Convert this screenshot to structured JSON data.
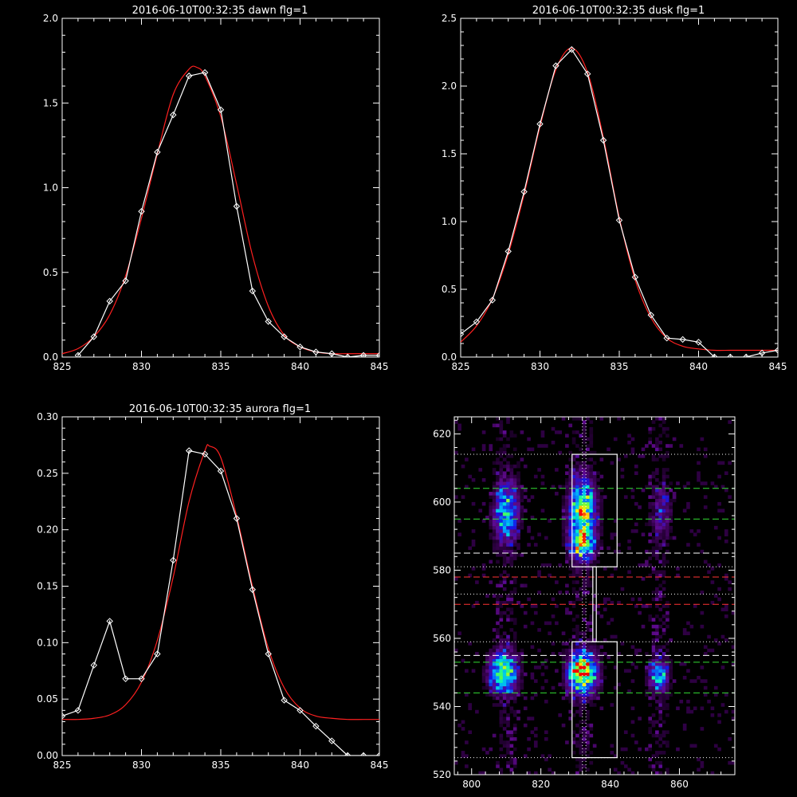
{
  "chart_data": [
    {
      "type": "line",
      "title": "2016-06-10T00:32:35 dawn flg=1",
      "xlim": [
        825,
        845
      ],
      "ylim": [
        0,
        2.0
      ],
      "xticks": [
        825,
        830,
        835,
        840,
        845
      ],
      "yticks": [
        0.0,
        0.5,
        1.0,
        1.5,
        2.0
      ],
      "ytick_labels": [
        "0.0",
        "0.5",
        "1.0",
        "1.5",
        "2.0"
      ],
      "series": [
        {
          "role": "observed",
          "color": "#ffffff",
          "marker": "diamond",
          "x": [
            826,
            827,
            828,
            829,
            830,
            831,
            832,
            833,
            834,
            835,
            836,
            837,
            838,
            839,
            840,
            841,
            842,
            843,
            844,
            845
          ],
          "y": [
            0.01,
            0.12,
            0.33,
            0.45,
            0.86,
            1.21,
            1.43,
            1.66,
            1.68,
            1.46,
            0.89,
            0.39,
            0.21,
            0.12,
            0.06,
            0.03,
            0.02,
            0.0,
            0.01,
            0.01
          ]
        },
        {
          "role": "fit",
          "color": "#ff2020",
          "x": [
            825,
            826,
            827,
            828,
            829,
            830,
            831,
            832,
            833,
            833.5,
            834,
            835,
            836,
            837,
            838,
            839,
            840,
            841,
            842,
            843,
            844,
            845
          ],
          "y": [
            0.02,
            0.05,
            0.12,
            0.25,
            0.48,
            0.82,
            1.2,
            1.55,
            1.7,
            1.71,
            1.66,
            1.42,
            1.02,
            0.6,
            0.3,
            0.13,
            0.06,
            0.03,
            0.02,
            0.02,
            0.02,
            0.02
          ]
        }
      ]
    },
    {
      "type": "line",
      "title": "2016-06-10T00:32:35 dusk flg=1",
      "xlim": [
        825,
        845
      ],
      "ylim": [
        0,
        2.5
      ],
      "xticks": [
        825,
        830,
        835,
        840,
        845
      ],
      "yticks": [
        0.0,
        0.5,
        1.0,
        1.5,
        2.0,
        2.5
      ],
      "ytick_labels": [
        "0.0",
        "0.5",
        "1.0",
        "1.5",
        "2.0",
        "2.5"
      ],
      "series": [
        {
          "role": "observed",
          "color": "#ffffff",
          "marker": "diamond",
          "x": [
            825,
            826,
            827,
            828,
            829,
            830,
            831,
            832,
            833,
            834,
            835,
            836,
            837,
            838,
            839,
            840,
            841,
            842,
            843,
            844,
            845
          ],
          "y": [
            0.17,
            0.26,
            0.42,
            0.78,
            1.22,
            1.72,
            2.15,
            2.27,
            2.09,
            1.6,
            1.01,
            0.59,
            0.31,
            0.14,
            0.13,
            0.11,
            0.0,
            0.0,
            0.0,
            0.03,
            0.05
          ]
        },
        {
          "role": "fit",
          "color": "#ff2020",
          "x": [
            825,
            826,
            827,
            828,
            829,
            830,
            831,
            832,
            833,
            834,
            835,
            836,
            837,
            838,
            839,
            840,
            841,
            842,
            843,
            844,
            845
          ],
          "y": [
            0.11,
            0.23,
            0.43,
            0.76,
            1.2,
            1.7,
            2.12,
            2.28,
            2.1,
            1.62,
            1.03,
            0.57,
            0.29,
            0.14,
            0.08,
            0.06,
            0.05,
            0.05,
            0.05,
            0.05,
            0.05
          ]
        }
      ]
    },
    {
      "type": "line",
      "title": "2016-06-10T00:32:35 aurora flg=1",
      "xlim": [
        825,
        845
      ],
      "ylim": [
        0,
        0.3
      ],
      "xticks": [
        825,
        830,
        835,
        840,
        845
      ],
      "yticks": [
        0.0,
        0.05,
        0.1,
        0.15,
        0.2,
        0.25,
        0.3
      ],
      "ytick_labels": [
        "0.00",
        "0.05",
        "0.10",
        "0.15",
        "0.20",
        "0.25",
        "0.30"
      ],
      "series": [
        {
          "role": "observed",
          "color": "#ffffff",
          "marker": "diamond",
          "x": [
            825,
            826,
            827,
            828,
            829,
            830,
            831,
            832,
            833,
            834,
            835,
            836,
            837,
            838,
            839,
            840,
            841,
            842,
            843,
            844,
            845
          ],
          "y": [
            0.035,
            0.04,
            0.08,
            0.119,
            0.068,
            0.068,
            0.09,
            0.173,
            0.27,
            0.267,
            0.252,
            0.21,
            0.147,
            0.09,
            0.049,
            0.04,
            0.026,
            0.013,
            0.0,
            0.0,
            0.0
          ]
        },
        {
          "role": "fit",
          "color": "#ff2020",
          "x": [
            825,
            826,
            827,
            828,
            829,
            830,
            831,
            832,
            833,
            834,
            834.3,
            835,
            836,
            837,
            838,
            839,
            840,
            841,
            842,
            843,
            844,
            845
          ],
          "y": [
            0.032,
            0.032,
            0.033,
            0.036,
            0.045,
            0.065,
            0.102,
            0.158,
            0.225,
            0.27,
            0.274,
            0.264,
            0.212,
            0.15,
            0.095,
            0.06,
            0.042,
            0.035,
            0.033,
            0.032,
            0.032,
            0.032
          ]
        }
      ]
    },
    {
      "type": "heatmap",
      "xlim": [
        795,
        876
      ],
      "ylim": [
        520,
        625
      ],
      "xticks": [
        800,
        820,
        840,
        860
      ],
      "yticks": [
        520,
        540,
        560,
        580,
        600,
        620
      ],
      "colormap": "rainbow",
      "blobs": [
        {
          "x": 810,
          "y": 597,
          "sx": 2.4,
          "sy": 6.0,
          "amp": 0.55
        },
        {
          "x": 809,
          "y": 550,
          "sx": 2.8,
          "sy": 4.0,
          "amp": 0.7
        },
        {
          "x": 832,
          "y": 597,
          "sx": 2.7,
          "sy": 6.5,
          "amp": 0.75
        },
        {
          "x": 832,
          "y": 587,
          "sx": 2.5,
          "sy": 3.0,
          "amp": 0.5
        },
        {
          "x": 832,
          "y": 550,
          "sx": 2.8,
          "sy": 4.0,
          "amp": 1.0
        },
        {
          "x": 854,
          "y": 549,
          "sx": 1.8,
          "sy": 3.0,
          "amp": 0.55
        },
        {
          "x": 855,
          "y": 597,
          "sx": 1.8,
          "sy": 5.0,
          "amp": 0.22
        }
      ],
      "boxes": [
        {
          "x0": 829,
          "x1": 842,
          "y0": 581,
          "y1": 614
        },
        {
          "x0": 829,
          "x1": 842,
          "y0": 525,
          "y1": 559
        },
        {
          "x0": 835,
          "x1": 836,
          "y0": 559,
          "y1": 581
        }
      ],
      "hlines": [
        {
          "y": 614,
          "style": "dotted",
          "color": "#ffffff"
        },
        {
          "y": 604,
          "style": "dashed",
          "color": "#33dd33"
        },
        {
          "y": 595,
          "style": "dashed",
          "color": "#33dd33"
        },
        {
          "y": 585,
          "style": "dashed",
          "color": "#ffffff"
        },
        {
          "y": 581,
          "style": "dotted",
          "color": "#ffffff"
        },
        {
          "y": 578,
          "style": "dashed",
          "color": "#ff3333"
        },
        {
          "y": 573,
          "style": "dotted",
          "color": "#ffffff"
        },
        {
          "y": 570,
          "style": "dashed",
          "color": "#ff3333"
        },
        {
          "y": 559,
          "style": "dotted",
          "color": "#ffffff"
        },
        {
          "y": 555,
          "style": "dashed",
          "color": "#ffffff"
        },
        {
          "y": 553,
          "style": "dashed",
          "color": "#33dd33"
        },
        {
          "y": 544,
          "style": "dashed",
          "color": "#33dd33"
        },
        {
          "y": 525,
          "style": "dotted",
          "color": "#ffffff"
        }
      ],
      "vlines": [
        {
          "x": 832,
          "style": "dotted",
          "color": "#ffffff"
        },
        {
          "x": 833,
          "style": "dotted",
          "color": "#ffffff"
        }
      ]
    }
  ]
}
